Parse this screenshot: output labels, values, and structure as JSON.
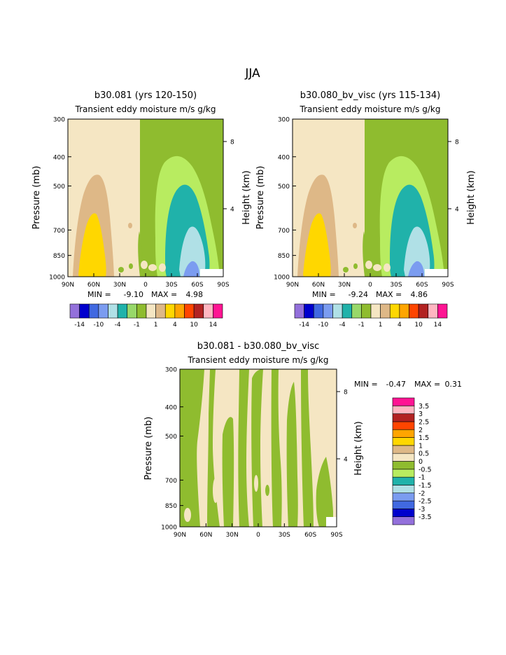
{
  "page_title": "JJA",
  "charts": [
    {
      "id": "left",
      "title": "b30.081 (yrs 120-150)",
      "subtitle": "Transient eddy moisture m/s g/kg",
      "ylabel": "Pressure (mb)",
      "y2label": "Height (km)",
      "min_label": "MIN =",
      "min_value": "-9.10",
      "max_label": "MAX =",
      "max_value": "4.98"
    },
    {
      "id": "right",
      "title": "b30.080_bv_visc (yrs 115-134)",
      "subtitle": "Transient eddy moisture m/s g/kg",
      "ylabel": "Pressure (mb)",
      "y2label": "Height (km)",
      "min_label": "MIN =",
      "min_value": "-9.24",
      "max_label": "MAX =",
      "max_value": "4.86"
    },
    {
      "id": "diff",
      "title": "b30.081 - b30.080_bv_visc",
      "subtitle": "Transient eddy moisture m/s g/kg",
      "ylabel": "Pressure (mb)",
      "y2label": "Height (km)",
      "min_label": "MIN =",
      "min_value": "-0.47",
      "max_label": "MAX =",
      "max_value": "0.31"
    }
  ],
  "chart_data": {
    "type": "heatmap",
    "x_ticks": [
      "90N",
      "60N",
      "30N",
      "0",
      "30S",
      "60S",
      "90S"
    ],
    "y_ticks": [
      "300",
      "400",
      "500",
      "700",
      "850",
      "1000"
    ],
    "y_tick_values": [
      300,
      400,
      500,
      700,
      850,
      1000
    ],
    "ylim": [
      1000,
      300
    ],
    "y_scale": "log",
    "y2_ticks": [
      "8",
      "4"
    ],
    "y2_tick_pressures": [
      356,
      595
    ],
    "colorbar_top": {
      "colors": [
        "#9370db",
        "#0000cd",
        "#4169e1",
        "#7b9cf0",
        "#b0e0e6",
        "#20b2aa",
        "#98d86a",
        "#8fbc2f",
        "#f5e6c3",
        "#deb887",
        "#ffd700",
        "#ffa500",
        "#ff4500",
        "#b22222",
        "#ffb6c1",
        "#ff1493"
      ],
      "labels": [
        "-14",
        "-10",
        "-4",
        "-1",
        "1",
        "4",
        "10",
        "14"
      ]
    },
    "colorbar_diff": {
      "colors": [
        "#9370db",
        "#0000cd",
        "#4169e1",
        "#7b9cf0",
        "#b0e0e6",
        "#20b2aa",
        "#b8ec60",
        "#8fbc2f",
        "#f5e6c3",
        "#deb887",
        "#ffd700",
        "#ffa500",
        "#ff4500",
        "#b22222",
        "#ffb6c1",
        "#ff1493"
      ],
      "labels": [
        "-3.5",
        "-3",
        "-2.5",
        "-2",
        "-1.5",
        "-1",
        "-0.5",
        "0",
        "0.5",
        "1",
        "1.5",
        "2",
        "2.5",
        "3",
        "3.5"
      ]
    },
    "fill_colors": {
      "background": "#f5e6c3",
      "tan": "#deb887",
      "yellow": "#ffd700",
      "green_dark": "#8fbc2f",
      "green_light": "#b8ec60",
      "teal": "#20b2aa",
      "light_blue": "#b0e0e6",
      "blue": "#7b9cf0"
    }
  }
}
